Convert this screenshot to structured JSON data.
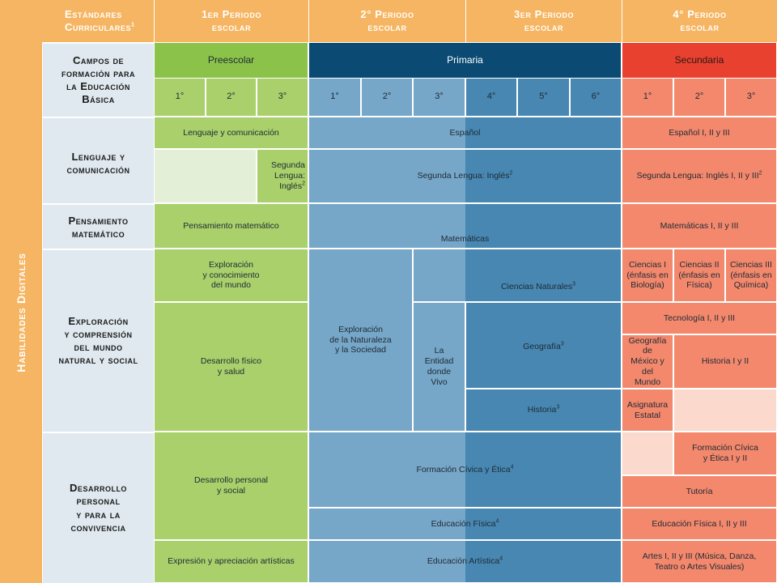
{
  "colors": {
    "header_orange": "#f6b562",
    "row_label_bg": "#dfe9ef",
    "preescolar_header": "#8bc34a",
    "preescolar_cell": "#a9d06b",
    "preescolar_empty": "#e4efd8",
    "primaria_header": "#0a4a73",
    "primaria_light": "#76a6c8",
    "primaria_dark": "#4787b2",
    "secundaria_header": "#e8412f",
    "secundaria_cell": "#f3886d",
    "secundaria_empty": "#fbd9cc"
  },
  "side_label": "Habilidades Digitales",
  "header": {
    "standards": "Estándares\nCurriculares",
    "standards_sup": "1",
    "p1": "1er Periodo\nescolar",
    "p2": "2° Periodo\nescolar",
    "p3": "3er Periodo\nescolar",
    "p4": "4° Periodo\nescolar"
  },
  "campos_label": "Campos de\nformación para\nla Educación\nBásica",
  "levels": {
    "preescolar": "Preescolar",
    "primaria": "Primaria",
    "secundaria": "Secundaria"
  },
  "grades": {
    "pre": [
      "1°",
      "2°",
      "3°"
    ],
    "pri": [
      "1°",
      "2°",
      "3°",
      "4°",
      "5°",
      "6°"
    ],
    "sec": [
      "1°",
      "2°",
      "3°"
    ]
  },
  "fields": {
    "lenguaje": "Lenguaje y\ncomunicación",
    "pensamiento": "Pensamiento\nmatemático",
    "exploracion": "Exploración\ny comprensión\ndel mundo\nnatural y social",
    "desarrollo": "Desarrollo\npersonal\ny para la\nconvivencia"
  },
  "cells": {
    "pre_lenguaje": "Lenguaje y comunicación",
    "pre_segunda": "Segunda\nLengua:\nInglés",
    "pre_segunda_sup": "2",
    "pre_pensamiento": "Pensamiento matemático",
    "pre_exploracion": "Exploración\ny conocimiento\ndel mundo",
    "pre_fisico": "Desarrollo físico\ny salud",
    "pre_personal": "Desarrollo personal\ny social",
    "pre_artistica": "Expresión y apreciación artísticas",
    "pri_espanol": "Español",
    "pri_segunda": "Segunda Lengua: Inglés",
    "pri_segunda_sup": "2",
    "pri_matematicas": "Matemáticas",
    "pri_exploracion": "Exploración\nde la Naturaleza\ny la Sociedad",
    "pri_entidad": "La\nEntidad\ndonde\nVivo",
    "pri_ciencias": "Ciencias Naturales",
    "pri_ciencias_sup": "3",
    "pri_geografia": "Geografía",
    "pri_geografia_sup": "3",
    "pri_historia": "Historia",
    "pri_historia_sup": "3",
    "pri_civica": "Formación Cívica y Ética",
    "pri_civica_sup": "4",
    "pri_fisica": "Educación Física",
    "pri_fisica_sup": "4",
    "pri_artistica": "Educación Artística",
    "pri_artistica_sup": "4",
    "sec_espanol": "Español I, II y III",
    "sec_segunda": "Segunda Lengua: Inglés I, II y III",
    "sec_segunda_sup": "2",
    "sec_matematicas": "Matemáticas  I, II y III",
    "sec_ciencias1": "Ciencias I\n(énfasis en\nBiología)",
    "sec_ciencias2": "Ciencias II\n(énfasis en\nFísica)",
    "sec_ciencias3": "Ciencias III\n(énfasis en\nQuímica)",
    "sec_tecnologia": "Tecnología  I, II y III",
    "sec_geografia": "Geografía de\nMéxico y del\nMundo",
    "sec_historia": "Historia I y II",
    "sec_asignatura": "Asignatura\nEstatal",
    "sec_civica": "Formación Cívica\ny Ética I y II",
    "sec_tutoria": "Tutoría",
    "sec_fisica": "Educación Física I, II y III",
    "sec_artes": "Artes I, II y III (Música, Danza,\nTeatro o Artes Visuales)"
  }
}
